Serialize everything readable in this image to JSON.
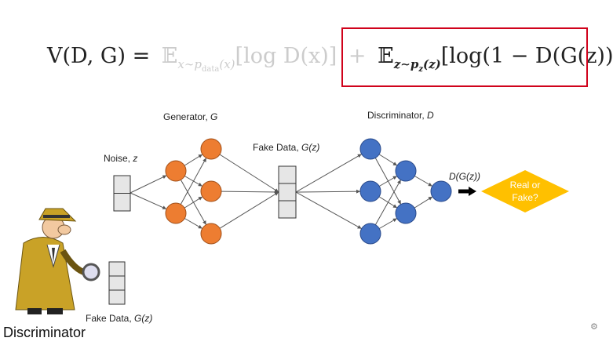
{
  "formula": {
    "lhs": "V(D, G) =",
    "term1": {
      "operator": "𝔼",
      "subscript": "x∼p",
      "subsubscript": "data",
      "subscript_tail": "(x)",
      "body": "[log D(x)]"
    },
    "plus": "+",
    "term2": {
      "operator": "𝔼",
      "subscript": "z∼p",
      "subsubscript": "z",
      "subscript_tail": "(z)",
      "body": "[log(1 − D(G(z)))]"
    }
  },
  "labels": {
    "generator": {
      "text": "Generator, ",
      "symbol": "G"
    },
    "discriminator": {
      "text": "Discriminator, ",
      "symbol": "D"
    },
    "noise": {
      "text": "Noise, ",
      "symbol": "z"
    },
    "fake_data": {
      "text": "Fake Data, ",
      "symbol": "G(z)"
    },
    "output": "D(G(z))",
    "decision": [
      "Real or",
      "Fake?"
    ],
    "bottom_fake_data": {
      "text": "Fake Data, ",
      "symbol": "G(z)"
    },
    "detective": "Discriminator"
  }
}
